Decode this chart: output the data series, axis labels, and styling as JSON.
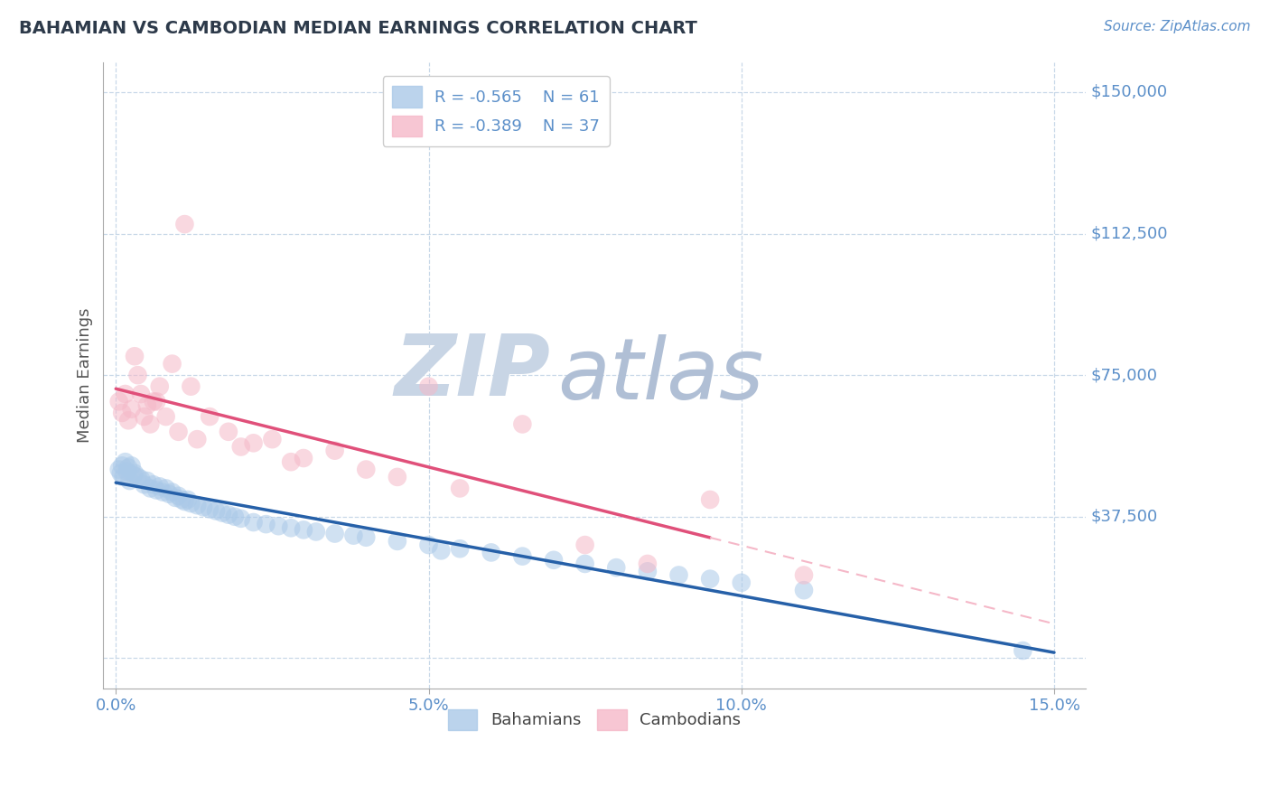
{
  "title": "BAHAMIAN VS CAMBODIAN MEDIAN EARNINGS CORRELATION CHART",
  "source": "Source: ZipAtlas.com",
  "xlim": [
    -0.2,
    15.5
  ],
  "ylim": [
    -8000,
    158000
  ],
  "ylabel": "Median Earnings",
  "bahamian_color": "#aac9e8",
  "cambodian_color": "#f5b8c8",
  "bahamian_line_color": "#2660a8",
  "cambodian_line_color": "#e0507a",
  "cambodian_line_dashed_color": "#f5b8c8",
  "bg_color": "#ffffff",
  "grid_color": "#c8d8e8",
  "title_color": "#2d3a4a",
  "axis_label_color": "#5b8fc9",
  "ytick_vals": [
    0,
    37500,
    75000,
    112500,
    150000
  ],
  "ytick_labels": [
    "",
    "$37,500",
    "$75,000",
    "$112,500",
    "$150,000"
  ],
  "xtick_vals": [
    0,
    5,
    10,
    15
  ],
  "xtick_labels": [
    "0.0%",
    "5.0%",
    "10.0%",
    "15.0%"
  ],
  "watermark_zip_color": "#c8d5e5",
  "watermark_atlas_color": "#b0bfd5",
  "legend_label_color": "#5b8fc9",
  "bottom_legend_color": "#444444",
  "bahamian_x": [
    0.05,
    0.08,
    0.1,
    0.12,
    0.15,
    0.18,
    0.2,
    0.22,
    0.25,
    0.28,
    0.3,
    0.35,
    0.4,
    0.45,
    0.5,
    0.55,
    0.6,
    0.65,
    0.7,
    0.75,
    0.8,
    0.85,
    0.9,
    0.95,
    1.0,
    1.05,
    1.1,
    1.15,
    1.2,
    1.3,
    1.4,
    1.5,
    1.6,
    1.7,
    1.8,
    1.9,
    2.0,
    2.2,
    2.4,
    2.6,
    2.8,
    3.0,
    3.2,
    3.5,
    3.8,
    4.0,
    4.5,
    5.0,
    5.5,
    6.0,
    6.5,
    7.0,
    7.5,
    8.0,
    8.5,
    9.0,
    9.5,
    10.0,
    11.0,
    14.5,
    5.2
  ],
  "bahamian_y": [
    50000,
    49000,
    51000,
    48000,
    52000,
    49500,
    50500,
    47000,
    51000,
    48500,
    49000,
    48000,
    47500,
    46000,
    47000,
    45000,
    46000,
    44500,
    45500,
    44000,
    45000,
    43500,
    44000,
    42500,
    43000,
    42000,
    41500,
    42000,
    41000,
    40500,
    40000,
    39500,
    39000,
    38500,
    38000,
    37500,
    37000,
    36000,
    35500,
    35000,
    34500,
    34000,
    33500,
    33000,
    32500,
    32000,
    31000,
    30000,
    29000,
    28000,
    27000,
    26000,
    25000,
    24000,
    23000,
    22000,
    21000,
    20000,
    18000,
    2000,
    28500
  ],
  "cambodian_x": [
    0.05,
    0.1,
    0.15,
    0.2,
    0.25,
    0.3,
    0.35,
    0.4,
    0.45,
    0.5,
    0.55,
    0.6,
    0.7,
    0.8,
    0.9,
    1.0,
    1.1,
    1.2,
    1.3,
    1.5,
    1.8,
    2.0,
    2.5,
    2.8,
    3.0,
    3.5,
    4.0,
    4.5,
    5.0,
    5.5,
    6.5,
    7.5,
    8.5,
    9.5,
    11.0,
    2.2,
    0.65
  ],
  "cambodian_y": [
    68000,
    65000,
    70000,
    63000,
    66000,
    80000,
    75000,
    70000,
    64000,
    67000,
    62000,
    68000,
    72000,
    64000,
    78000,
    60000,
    115000,
    72000,
    58000,
    64000,
    60000,
    56000,
    58000,
    52000,
    53000,
    55000,
    50000,
    48000,
    72000,
    45000,
    62000,
    30000,
    25000,
    42000,
    22000,
    57000,
    68000
  ],
  "cam_solid_xmax": 9.5,
  "bah_line_intercept": 52000,
  "bah_line_slope": -2500,
  "cam_line_intercept": 72000,
  "cam_line_slope": -3800
}
